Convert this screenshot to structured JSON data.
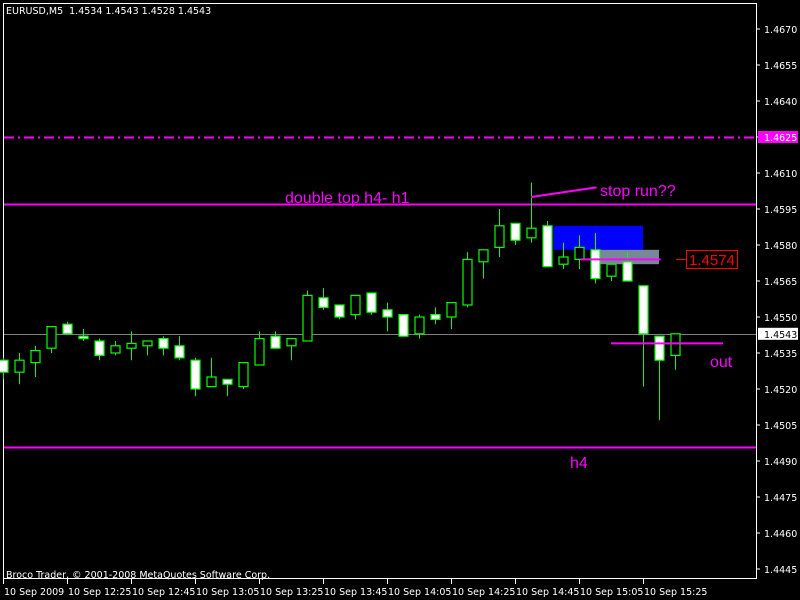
{
  "header": {
    "symbol": "EURUSD,M5",
    "ohlc": "1.4534 1.4543 1.4528 1.4543"
  },
  "copyright": "Broco Trader, © 2001-2008 MetaQuotes Software Corp.",
  "colors": {
    "background": "#000000",
    "candle_outline": "#00ff00",
    "bull_body": "#000000",
    "bear_body": "#ffffff",
    "annotation": "#ff00ff",
    "bid_line": "#808080",
    "zone_blue": "#0000ff",
    "zone_grey": "#778899",
    "price_label": "#ff0000"
  },
  "chart_data": {
    "type": "candlestick",
    "timeframe": "M5",
    "yaxis": {
      "min": 1.4438,
      "max": 1.4678,
      "ticks": [
        "1.4670",
        "1.4655",
        "1.4640",
        "1.4625",
        "1.4610",
        "1.4595",
        "1.4580",
        "1.4565",
        "1.4550",
        "1.4535",
        "1.4520",
        "1.4505",
        "1.4490",
        "1.4475",
        "1.4460",
        "1.4445"
      ],
      "highlight_labels": [
        {
          "text": "1.4625",
          "value": 1.4625,
          "bg": "#ff00ff"
        },
        {
          "text": "1.4543",
          "value": 1.4543,
          "bg": "#ffffff"
        }
      ]
    },
    "xaxis": {
      "ticks": [
        "10 Sep 2009",
        "10 Sep 12:25",
        "10 Sep 12:45",
        "10 Sep 13:05",
        "10 Sep 13:25",
        "10 Sep 13:45",
        "10 Sep 14:05",
        "10 Sep 14:25",
        "10 Sep 14:45",
        "10 Sep 15:05",
        "10 Sep 15:25"
      ]
    },
    "candles": [
      [
        1.4532,
        1.4533,
        1.4524,
        1.4527
      ],
      [
        1.4527,
        1.4535,
        1.4522,
        1.4532
      ],
      [
        1.4531,
        1.4538,
        1.4525,
        1.4536
      ],
      [
        1.4537,
        1.4546,
        1.4535,
        1.4546
      ],
      [
        1.4547,
        1.4548,
        1.4543,
        1.4543
      ],
      [
        1.4542,
        1.4545,
        1.454,
        1.4541
      ],
      [
        1.454,
        1.4541,
        1.4532,
        1.4534
      ],
      [
        1.4535,
        1.454,
        1.4534,
        1.4538
      ],
      [
        1.4537,
        1.4544,
        1.4532,
        1.4539
      ],
      [
        1.4538,
        1.454,
        1.4534,
        1.454
      ],
      [
        1.4541,
        1.4542,
        1.4534,
        1.4537
      ],
      [
        1.4538,
        1.4542,
        1.4532,
        1.4533
      ],
      [
        1.4532,
        1.4533,
        1.4517,
        1.452
      ],
      [
        1.4521,
        1.4533,
        1.4521,
        1.4525
      ],
      [
        1.4524,
        1.4524,
        1.4517,
        1.4522
      ],
      [
        1.4521,
        1.4531,
        1.452,
        1.4531
      ],
      [
        1.453,
        1.4544,
        1.453,
        1.4541
      ],
      [
        1.4542,
        1.4544,
        1.4537,
        1.4537
      ],
      [
        1.4538,
        1.4541,
        1.4532,
        1.4541
      ],
      [
        1.454,
        1.4561,
        1.454,
        1.4559
      ],
      [
        1.4558,
        1.4562,
        1.4553,
        1.4554
      ],
      [
        1.4555,
        1.4555,
        1.4549,
        1.455
      ],
      [
        1.4551,
        1.4559,
        1.4549,
        1.4559
      ],
      [
        1.456,
        1.456,
        1.4551,
        1.4552
      ],
      [
        1.4553,
        1.4556,
        1.4544,
        1.455
      ],
      [
        1.4551,
        1.4551,
        1.4542,
        1.4542
      ],
      [
        1.4543,
        1.4551,
        1.4541,
        1.455
      ],
      [
        1.4551,
        1.4554,
        1.4547,
        1.4549
      ],
      [
        1.455,
        1.4556,
        1.4545,
        1.4556
      ],
      [
        1.4555,
        1.4577,
        1.4554,
        1.4574
      ],
      [
        1.4573,
        1.4578,
        1.4566,
        1.4578
      ],
      [
        1.4579,
        1.4595,
        1.4575,
        1.4588
      ],
      [
        1.4589,
        1.4589,
        1.458,
        1.4582
      ],
      [
        1.4583,
        1.4606,
        1.4581,
        1.4587
      ],
      [
        1.4588,
        1.459,
        1.4571,
        1.4571
      ],
      [
        1.4572,
        1.4581,
        1.457,
        1.4575
      ],
      [
        1.4574,
        1.4584,
        1.457,
        1.4579
      ],
      [
        1.4578,
        1.4585,
        1.4564,
        1.4566
      ],
      [
        1.4567,
        1.4572,
        1.4565,
        1.4572
      ],
      [
        1.4573,
        1.4577,
        1.4565,
        1.4565
      ],
      [
        1.4563,
        1.4563,
        1.4521,
        1.4543
      ],
      [
        1.4542,
        1.4542,
        1.4507,
        1.4532
      ],
      [
        1.4534,
        1.4543,
        1.4528,
        1.4543
      ]
    ],
    "levels": [
      {
        "name": "level-1.4625",
        "price": 1.4625,
        "style": "dashdot"
      },
      {
        "name": "double-top-line",
        "price": 1.4597,
        "style": "solid"
      },
      {
        "name": "h4-line",
        "price": 1.4496,
        "style": "solid"
      },
      {
        "name": "bid-line",
        "price": 1.4543,
        "style": "bid"
      }
    ],
    "annotations": {
      "double_top": "double top h4- h1",
      "stop_run": "stop run??",
      "out": "out",
      "h4": "h4",
      "price_label": "1.4574"
    },
    "zones": [
      {
        "name": "blue-zone",
        "from_bar": 34.4,
        "to_bar": 40,
        "top": 1.4588,
        "bottom": 1.4578
      },
      {
        "name": "grey-zone",
        "from_bar": 37.3,
        "to_bar": 41,
        "top": 1.4578,
        "bottom": 1.4572
      }
    ],
    "segments": [
      {
        "name": "entry-line",
        "from_bar": 36.1,
        "to_bar": 41.1,
        "p1": 1.4574,
        "p2": 1.4574
      },
      {
        "name": "out-line",
        "from_bar": 38,
        "to_bar": 45,
        "p1": 1.4539,
        "p2": 1.4539
      },
      {
        "name": "stop-run-line",
        "from_bar": 33,
        "to_bar": 37.1,
        "p1": 1.46,
        "p2": 1.4604
      }
    ]
  }
}
